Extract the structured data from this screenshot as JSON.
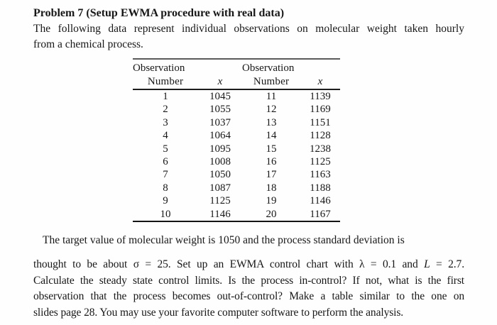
{
  "document": {
    "title": "Problem 7 (Setup EWMA procedure with real data)",
    "intro": {
      "line1": "The following data represent individual observations on molecular weight taken hourly",
      "line2": "from a chemical process."
    },
    "target_sentence": "The target value of molecular weight is 1050 and the process standard deviation is",
    "body": {
      "line1_t1": "thought to be about ",
      "line1_sigma": "σ",
      "line1_t2": " = 25. Set up an EWMA control chart with ",
      "line1_lambda": "λ",
      "line1_t3": " = 0.1 and ",
      "line1_L": "L",
      "line1_t4": " = 2.7.",
      "line2": "Calculate the steady state control limits. Is the process in-control? If not, what is the first",
      "line3": "observation that the process becomes out-of-control? Make a table similar to the one on",
      "line4": "slides page 28. You may use your favorite computer software to perform the analysis."
    }
  },
  "table": {
    "header": {
      "obs_label": "Observation",
      "number_label": "Number",
      "x_label": "x"
    },
    "rows": [
      [
        "1",
        "1045",
        "11",
        "1139"
      ],
      [
        "2",
        "1055",
        "12",
        "1169"
      ],
      [
        "3",
        "1037",
        "13",
        "1151"
      ],
      [
        "4",
        "1064",
        "14",
        "1128"
      ],
      [
        "5",
        "1095",
        "15",
        "1238"
      ],
      [
        "6",
        "1008",
        "16",
        "1125"
      ],
      [
        "7",
        "1050",
        "17",
        "1163"
      ],
      [
        "8",
        "1087",
        "18",
        "1188"
      ],
      [
        "9",
        "1125",
        "19",
        "1146"
      ],
      [
        "10",
        "1146",
        "20",
        "1167"
      ]
    ]
  },
  "colors": {
    "background": "#fefefe",
    "text": "#171717",
    "rule": "#1c1c1c"
  }
}
